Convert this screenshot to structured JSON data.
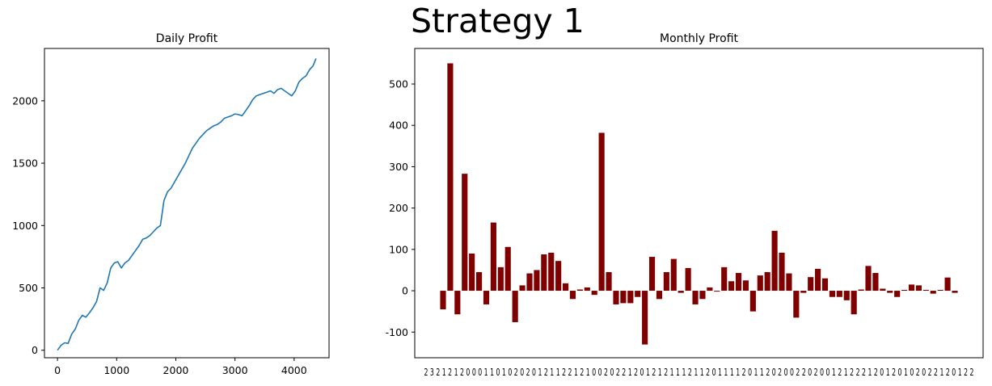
{
  "figure": {
    "suptitle": "Strategy 1",
    "bar_color": "#800000",
    "line_color": "#1f77b4"
  },
  "chart_data": [
    {
      "type": "line",
      "title": "Daily Profit",
      "xlabel": "",
      "ylabel": "",
      "xlim": [
        -220,
        4590
      ],
      "ylim": [
        -60,
        2420
      ],
      "xticks": [
        0,
        1000,
        2000,
        3000,
        4000
      ],
      "yticks": [
        0,
        500,
        1000,
        1500,
        2000
      ],
      "grid": false,
      "series": [
        {
          "x": [
            0,
            60,
            120,
            180,
            240,
            300,
            360,
            420,
            480,
            540,
            600,
            660,
            720,
            780,
            840,
            900,
            960,
            1020,
            1080,
            1140,
            1200,
            1260,
            1320,
            1380,
            1440,
            1500,
            1560,
            1620,
            1680,
            1740,
            1770,
            1800,
            1860,
            1920,
            1980,
            2040,
            2100,
            2160,
            2220,
            2280,
            2340,
            2400,
            2460,
            2520,
            2580,
            2640,
            2700,
            2760,
            2820,
            2880,
            2940,
            3000,
            3060,
            3120,
            3180,
            3240,
            3300,
            3360,
            3420,
            3480,
            3540,
            3600,
            3660,
            3720,
            3780,
            3840,
            3900,
            3960,
            4020,
            4080,
            4140,
            4200,
            4260,
            4320,
            4370
          ],
          "y": [
            0,
            40,
            60,
            55,
            130,
            170,
            240,
            280,
            265,
            300,
            340,
            390,
            500,
            480,
            540,
            660,
            700,
            710,
            660,
            700,
            720,
            760,
            800,
            840,
            890,
            900,
            920,
            950,
            980,
            1000,
            1100,
            1200,
            1270,
            1300,
            1350,
            1400,
            1450,
            1500,
            1560,
            1620,
            1660,
            1700,
            1730,
            1760,
            1780,
            1800,
            1810,
            1830,
            1860,
            1870,
            1880,
            1895,
            1890,
            1880,
            1920,
            1960,
            2010,
            2040,
            2050,
            2060,
            2070,
            2080,
            2060,
            2090,
            2100,
            2080,
            2060,
            2040,
            2080,
            2150,
            2180,
            2200,
            2250,
            2280,
            2340
          ]
        }
      ]
    },
    {
      "type": "bar",
      "title": "Monthly Profit",
      "xlabel": "",
      "ylabel": "",
      "ylim": [
        -162,
        586
      ],
      "yticks": [
        -100,
        0,
        100,
        200,
        300,
        400,
        500
      ],
      "grid": false,
      "xtick_text": "2 3 2 1 2 1 2 0 0 0 1 1 0 1 0 2 0 2 0 1 2 1 1 2 2 1 2 1 0 0 2 0 2 2 1 2 0 1 2 1 2 1 1 1 2 1 1 2 0 1 1 1 1 2 0 1 1 2 0 2 0 0 2 2 0 2 0 0 1 2 1 2 2 2 1 2 0 1 2 0 1 0 2 0 2 2 1 2 0 1 2 2",
      "values": [
        -45,
        550,
        -57,
        283,
        90,
        45,
        -33,
        165,
        57,
        106,
        -76,
        13,
        42,
        50,
        88,
        92,
        72,
        18,
        -20,
        3,
        8,
        -10,
        382,
        45,
        -33,
        -30,
        -30,
        -15,
        -130,
        82,
        -20,
        45,
        77,
        -5,
        55,
        -33,
        -20,
        8,
        -2,
        57,
        23,
        43,
        25,
        -50,
        37,
        45,
        145,
        92,
        42,
        -65,
        -5,
        33,
        53,
        30,
        -15,
        -15,
        -23,
        -57,
        3,
        60,
        43,
        5,
        -5,
        -15,
        2,
        15,
        13,
        2,
        -7,
        2,
        32,
        -5
      ]
    }
  ]
}
